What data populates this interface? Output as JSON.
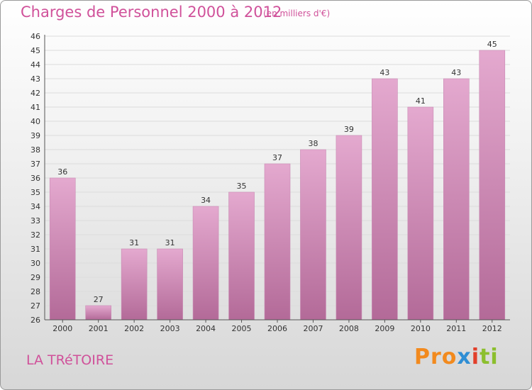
{
  "header": {
    "title": "Charges de Personnel 2000 à 2012",
    "subtitle": "(en milliers d'€)"
  },
  "footer": {
    "place": "LA TRéTOIRE",
    "logo": "Proxiti"
  },
  "colors": {
    "title": "#d0519a",
    "bar_top": "#e4a9cf",
    "bar_bottom": "#b36a98"
  },
  "chart_data": {
    "type": "bar",
    "title": "Charges de Personnel 2000 à 2012",
    "subtitle": "(en milliers d'€)",
    "categories": [
      "2000",
      "2001",
      "2002",
      "2003",
      "2004",
      "2005",
      "2006",
      "2007",
      "2008",
      "2009",
      "2010",
      "2011",
      "2012"
    ],
    "values": [
      36,
      27,
      31,
      31,
      34,
      35,
      37,
      38,
      39,
      43,
      41,
      43,
      45
    ],
    "ylim": [
      26,
      46
    ],
    "yticks": [
      26,
      27,
      28,
      29,
      30,
      31,
      32,
      33,
      34,
      35,
      36,
      37,
      38,
      39,
      40,
      41,
      42,
      43,
      44,
      45,
      46
    ],
    "grid": true
  }
}
